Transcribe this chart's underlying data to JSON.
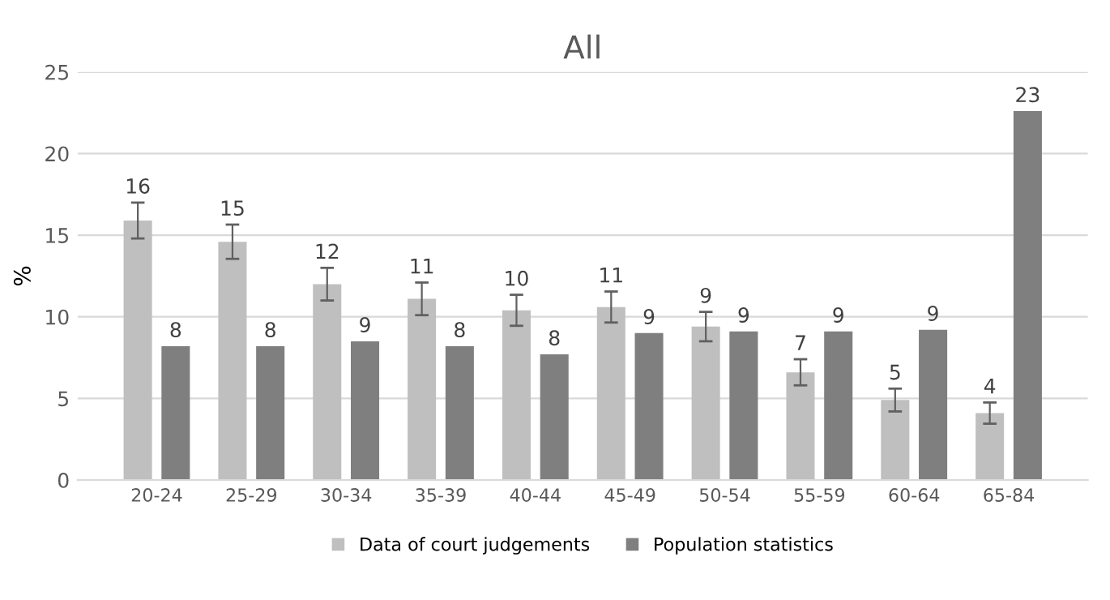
{
  "chart_data": {
    "type": "bar",
    "title": "All",
    "ylabel": "%",
    "categories": [
      "20-24",
      "25-29",
      "30-34",
      "35-39",
      "40-44",
      "45-49",
      "50-54",
      "55-59",
      "60-64",
      "65-84"
    ],
    "series": [
      {
        "name": "Data of court judgements",
        "color": "#bfbfbf",
        "values": [
          15.9,
          14.6,
          12.0,
          11.1,
          10.4,
          10.6,
          9.4,
          6.6,
          4.9,
          4.1
        ],
        "errors": [
          1.1,
          1.05,
          1.0,
          1.0,
          0.95,
          0.95,
          0.9,
          0.8,
          0.7,
          0.65
        ],
        "value_labels": [
          "16",
          "15",
          "12",
          "11",
          "10",
          "11",
          "9",
          "7",
          "5",
          "4"
        ]
      },
      {
        "name": "Population statistics",
        "color": "#7f7f7f",
        "values": [
          8.2,
          8.2,
          8.5,
          8.2,
          7.7,
          9.0,
          9.1,
          9.1,
          9.2,
          22.6
        ],
        "value_labels": [
          "8",
          "8",
          "9",
          "8",
          "8",
          "9",
          "9",
          "9",
          "9",
          "23"
        ]
      }
    ],
    "ylim": [
      0,
      25
    ],
    "yticks": [
      0,
      5,
      10,
      15,
      20,
      25
    ],
    "grid": "y",
    "legend": "bottom"
  }
}
